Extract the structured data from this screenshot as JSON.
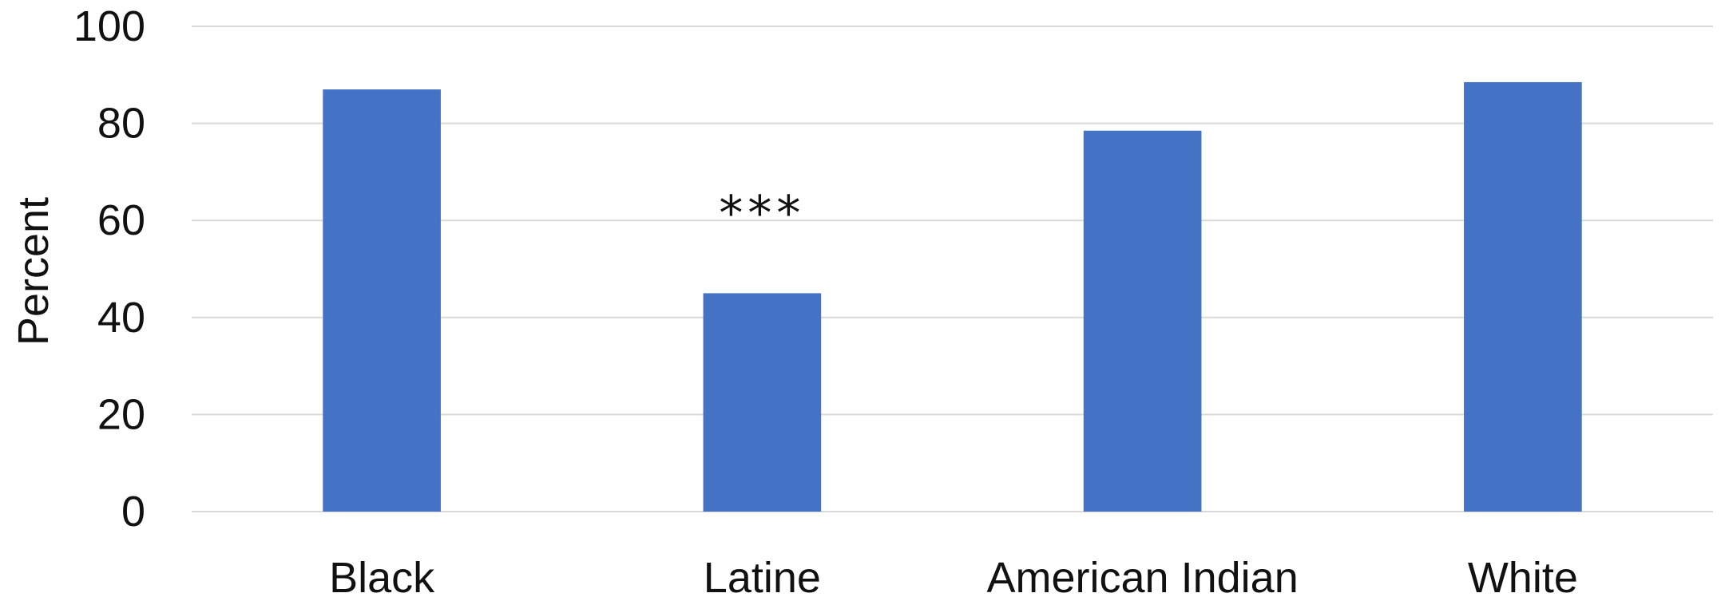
{
  "chart_data": {
    "type": "bar",
    "title": "",
    "xlabel": "",
    "ylabel": "Percent",
    "ylim": [
      0,
      100
    ],
    "yticks": [
      0,
      20,
      40,
      60,
      80,
      100
    ],
    "grid": true,
    "legend": "none",
    "categories": [
      "Black",
      "Latine",
      "American Indian",
      "White"
    ],
    "values": [
      87,
      45,
      78.5,
      88.5
    ],
    "annotations": [
      {
        "category": "Latine",
        "text": "***"
      }
    ],
    "colors": {
      "bar": "#4472C4",
      "grid": "#D9D9D9",
      "text": "#111111"
    }
  }
}
